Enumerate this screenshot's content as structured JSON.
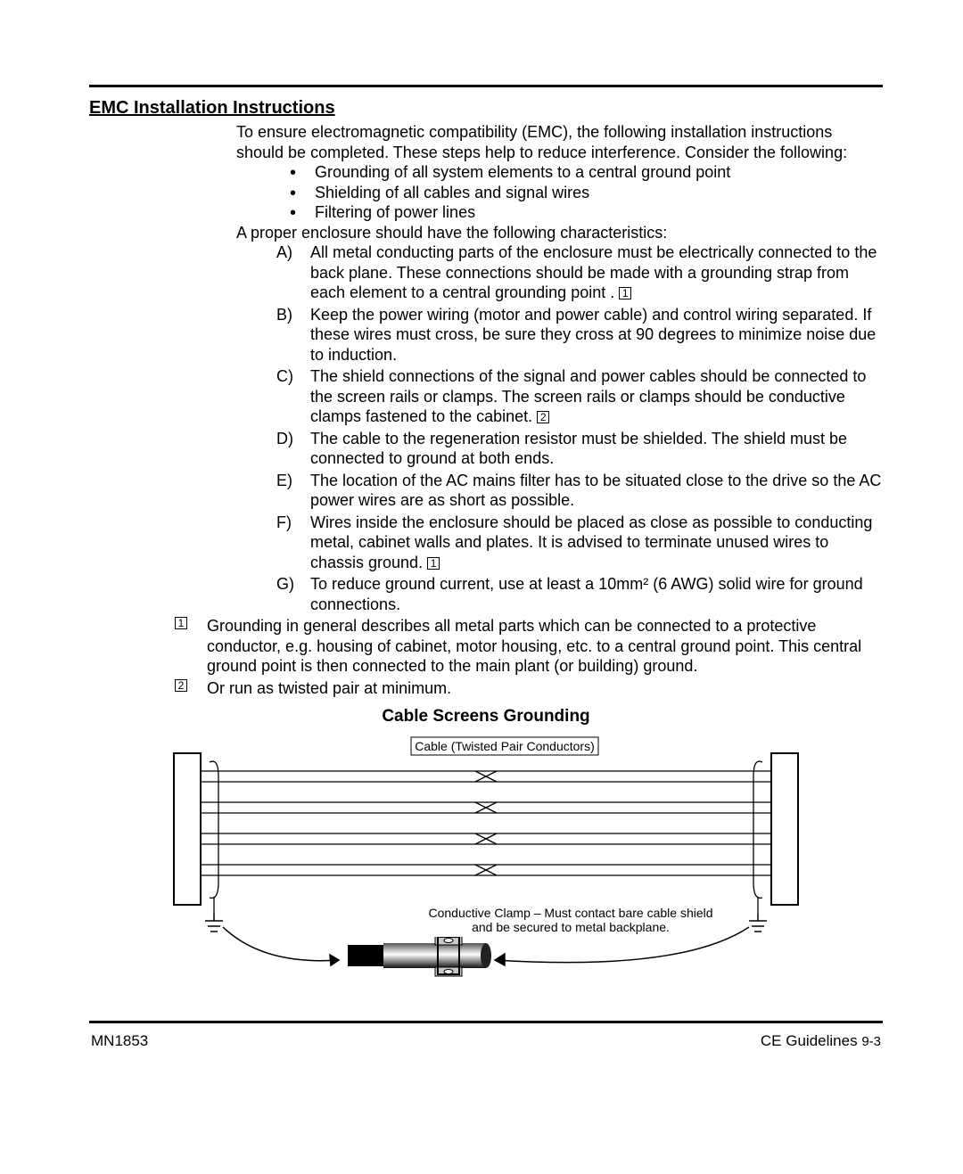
{
  "section_title": "EMC  Installation  Instructions",
  "intro": "To ensure electromagnetic compatibility (EMC), the following installation instructions should be completed. These steps help to reduce interference. Consider the following:",
  "bullets": [
    "Grounding of all system elements to a central ground point",
    "Shielding of all cables and signal wires",
    "Filtering of power lines"
  ],
  "enclosure_intro": "A proper enclosure should have the following characteristics:",
  "letters": [
    {
      "l": "A)",
      "t": "All metal conducting parts of the enclosure must be electrically connected to the back plane. These connections should be made with a grounding strap from each element to a central grounding point .",
      "ref": "1"
    },
    {
      "l": "B)",
      "t": "Keep the power wiring (motor and power cable) and control wiring separated. If these wires must cross, be sure they cross at 90 degrees to minimize noise due to induction.",
      "ref": null
    },
    {
      "l": "C)",
      "t": "The shield connections of the signal and power cables should be connected to the screen rails or clamps. The screen rails or clamps should be conductive clamps fastened to the cabinet.",
      "ref": "2"
    },
    {
      "l": "D)",
      "t": "The cable to the regeneration resistor must be shielded. The shield must be connected to ground at both ends.",
      "ref": null
    },
    {
      "l": "E)",
      "t": "The location of the AC mains filter has to be situated close to the drive so the AC power wires are as short as possible.",
      "ref": null
    },
    {
      "l": "F)",
      "t": "Wires inside the enclosure should be placed as close as possible to conducting metal, cabinet walls and plates. It is advised to terminate unused wires to chassis ground.",
      "ref": "1"
    },
    {
      "l": "G)",
      "t": "To reduce ground current, use at least a 10mm² (6 AWG) solid wire for ground connections.",
      "ref": null
    }
  ],
  "notes": [
    {
      "n": "1",
      "t": "Grounding in general describes all metal parts which can be connected to a protective conductor, e.g. housing of cabinet, motor housing, etc.  to a central ground point.  This central ground point is then connected to the main plant (or building) ground."
    },
    {
      "n": "2",
      "t": "Or run as twisted pair at minimum."
    }
  ],
  "diagram": {
    "title": "Cable Screens Grounding",
    "top_label": "Cable (Twisted Pair Conductors)",
    "bottom_label_1": "Conductive Clamp – Must contact bare cable shield",
    "bottom_label_2": "and be secured to metal backplane."
  },
  "footer": {
    "left": "MN1853",
    "right_label": "CE Guidelines",
    "right_page": "9-3"
  }
}
